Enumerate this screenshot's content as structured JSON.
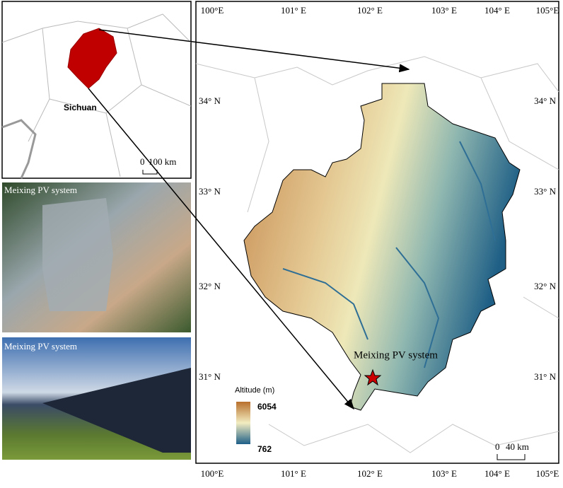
{
  "inset": {
    "region_label": "Sichuan",
    "scale_start": "0",
    "scale_end": "100 km"
  },
  "photos": [
    {
      "label": "Meixing PV system"
    },
    {
      "label": "Meixing PV system"
    }
  ],
  "main_map": {
    "lon_labels_top": [
      "100°E",
      "101° E",
      "102° E",
      "103° E",
      "104° E",
      "105°E"
    ],
    "lon_labels_bottom": [
      "100°E",
      "101° E",
      "102° E",
      "103° E",
      "104° E",
      "105°E"
    ],
    "lat_labels_left": [
      "34° N",
      "33° N",
      "32° N",
      "31° N"
    ],
    "lat_labels_right": [
      "34° N",
      "33° N",
      "32° N",
      "31° N"
    ],
    "site_label": "Meixing PV system",
    "legend": {
      "title": "Altitude (m)",
      "max": 6054,
      "min": 762
    },
    "scale_start": "0",
    "scale_end": "40 km"
  }
}
